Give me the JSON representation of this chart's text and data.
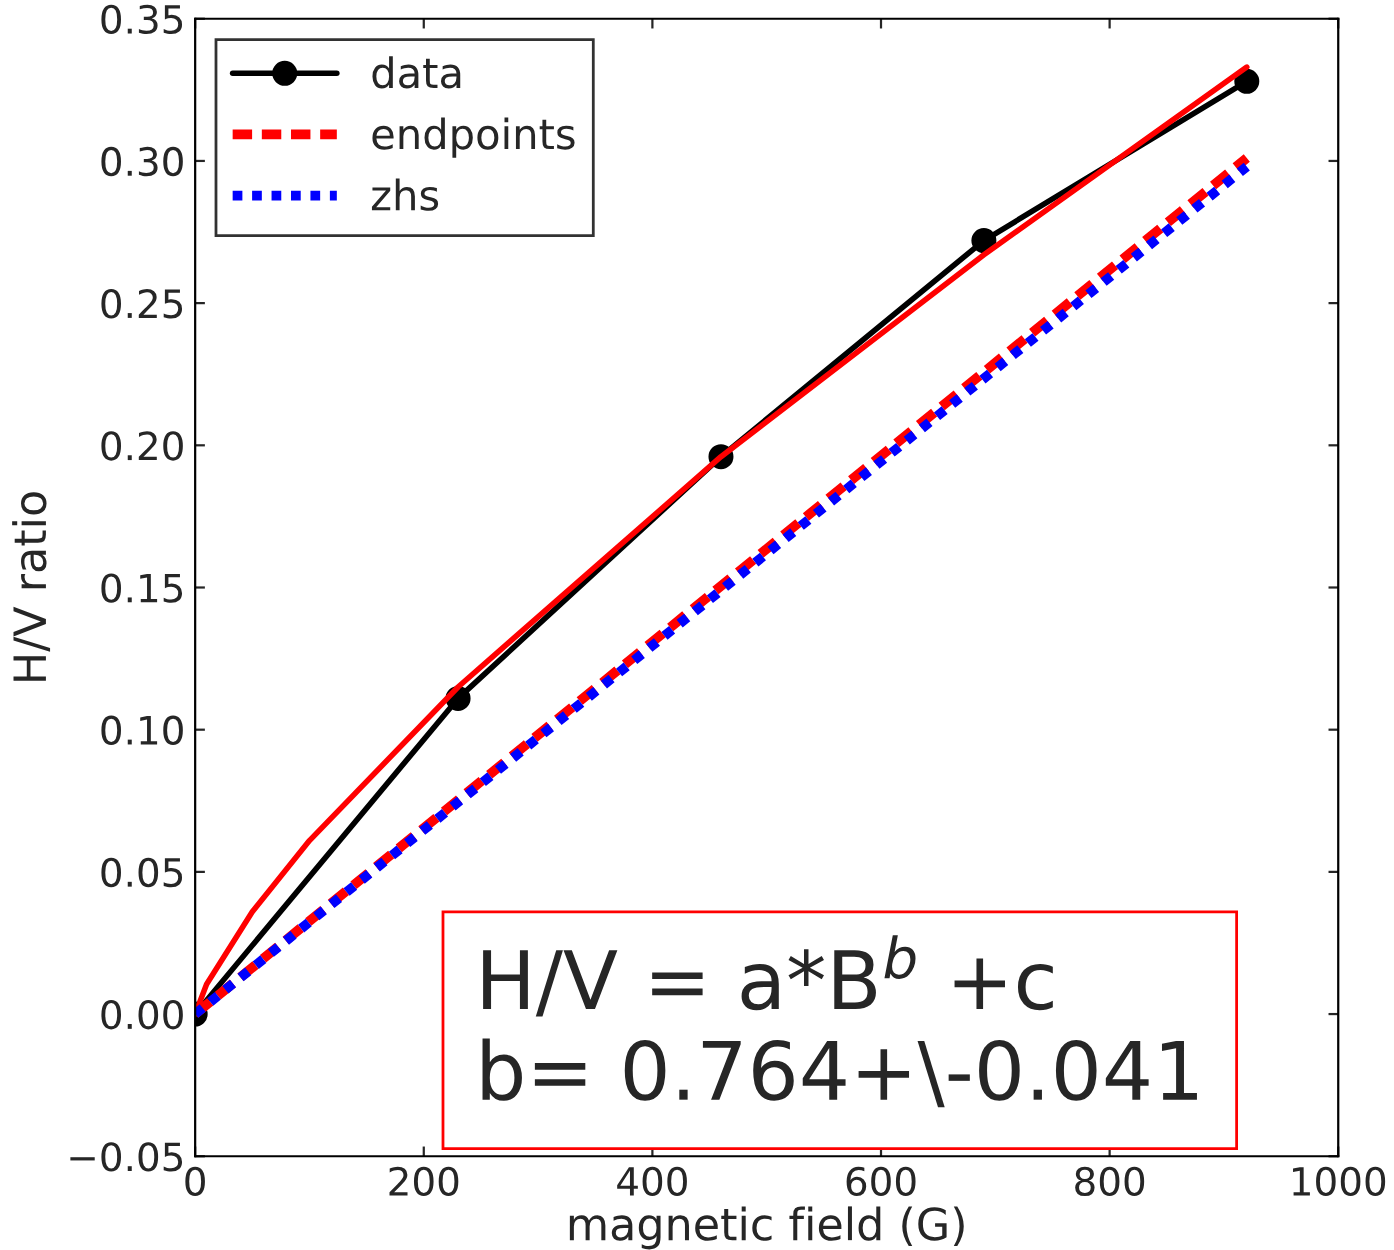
{
  "chart_data": {
    "type": "line",
    "xlabel": "magnetic field (G)",
    "ylabel": "H/V ratio",
    "series": [
      {
        "name": "data",
        "color": "#000000",
        "marker": "circle",
        "line_style": "solid",
        "x": [
          0,
          230,
          460,
          690,
          920
        ],
        "values": [
          0.0,
          0.111,
          0.196,
          0.272,
          0.328
        ]
      },
      {
        "color": "#ff0000",
        "marker": "none",
        "line_style": "solid",
        "x": [
          0,
          10,
          50,
          100,
          230,
          460,
          690,
          920
        ],
        "values": [
          0.0,
          0.0105,
          0.036,
          0.061,
          0.115,
          0.196,
          0.267,
          0.333
        ]
      },
      {
        "name": "endpoints",
        "color": "#ff0000",
        "marker": "none",
        "line_style": "dashed",
        "x": [
          0,
          920
        ],
        "values": [
          0.0,
          0.301
        ]
      },
      {
        "name": "zhs",
        "color": "#0000ff",
        "marker": "none",
        "line_style": "dotted",
        "x": [
          0,
          920
        ],
        "values": [
          0.0,
          0.298
        ]
      }
    ],
    "xlim": [
      0,
      1000
    ],
    "xticks": [
      0,
      200,
      400,
      600,
      800,
      1000
    ],
    "ylim": [
      -0.05,
      0.35
    ],
    "yticks": [
      {
        "value": -0.05,
        "label": "−0.05"
      },
      {
        "value": 0.0,
        "label": "0.00"
      },
      {
        "value": 0.05,
        "label": "0.05"
      },
      {
        "value": 0.1,
        "label": "0.10"
      },
      {
        "value": 0.15,
        "label": "0.15"
      },
      {
        "value": 0.2,
        "label": "0.20"
      },
      {
        "value": 0.25,
        "label": "0.25"
      },
      {
        "value": 0.3,
        "label": "0.30"
      },
      {
        "value": 0.35,
        "label": "0.35"
      }
    ],
    "legend": "top left",
    "grid": false,
    "annotations": [
      "H/V = a*B$^{b}$ +c\nb= 0.764+\\-0.041"
    ]
  }
}
